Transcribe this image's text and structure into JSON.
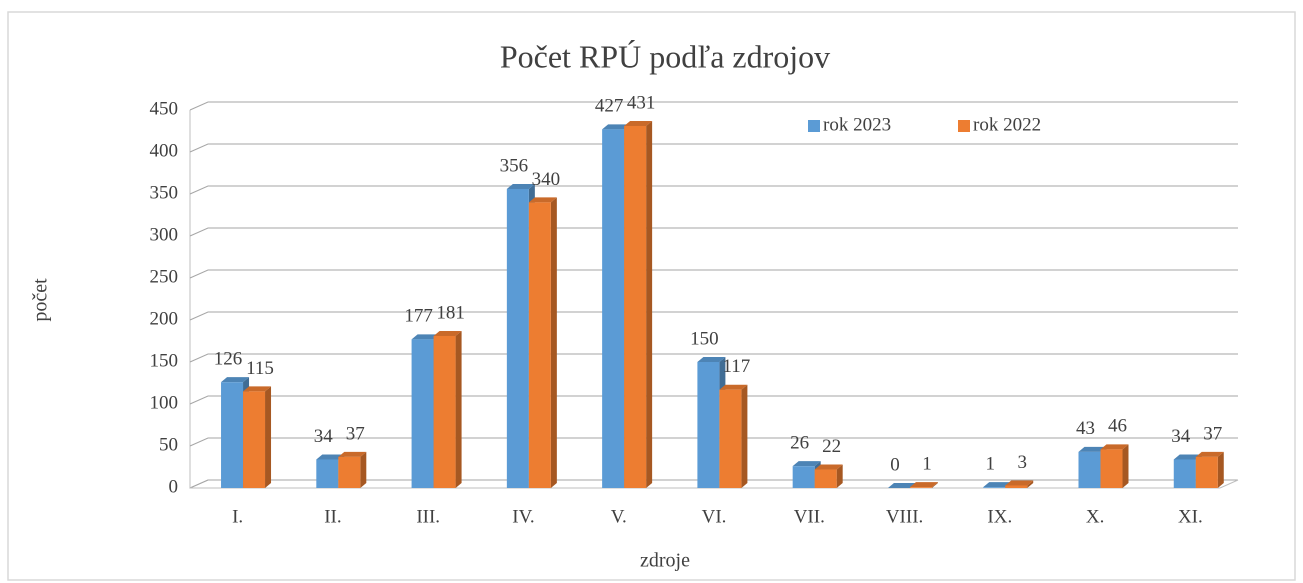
{
  "chart_data": {
    "type": "bar",
    "title": "Počet RPÚ podľa zdrojov",
    "x_label": "zdroje",
    "y_label": "počet",
    "categories": [
      "I.",
      "II.",
      "III.",
      "IV.",
      "V.",
      "VI.",
      "VII.",
      "VIII.",
      "IX.",
      "X.",
      "XI."
    ],
    "series": [
      {
        "name": "rok 2023",
        "color": "#5b9bd5",
        "values": [
          126,
          34,
          177,
          356,
          427,
          150,
          26,
          0,
          1,
          43,
          34
        ]
      },
      {
        "name": "rok 2022",
        "color": "#ed7d31",
        "values": [
          115,
          37,
          181,
          340,
          431,
          117,
          22,
          1,
          3,
          46,
          37
        ]
      }
    ],
    "ylim": [
      0,
      450
    ],
    "yticks": [
      0,
      50,
      100,
      150,
      200,
      250,
      300,
      350,
      400,
      450
    ],
    "grid": true,
    "legend": "top-right"
  }
}
